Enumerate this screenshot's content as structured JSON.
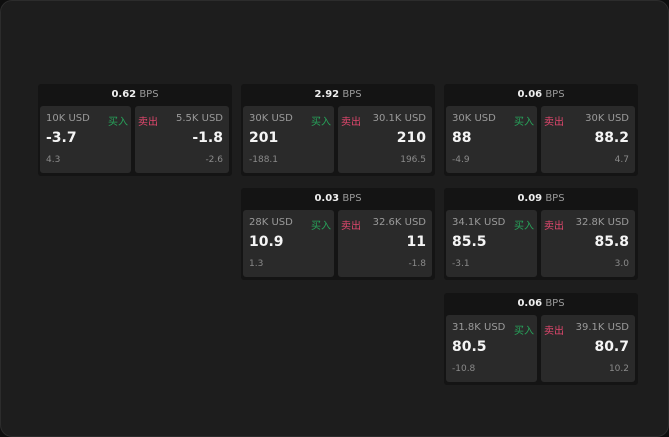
{
  "labels": {
    "bps": "BPS",
    "buy": "买入",
    "sell": "卖出"
  },
  "colors": {
    "buy": "#27a35a",
    "sell": "#e0476d"
  },
  "widgets": [
    {
      "spread": "0.62",
      "bid_qty": "10K USD",
      "bid": "-3.7",
      "bid_chg": "4.3",
      "ask_qty": "5.5K USD",
      "ask": "-1.8",
      "ask_chg": "-2.6"
    },
    {
      "spread": "2.92",
      "bid_qty": "30K USD",
      "bid": "201",
      "bid_chg": "-188.1",
      "ask_qty": "30.1K USD",
      "ask": "210",
      "ask_chg": "196.5"
    },
    {
      "spread": "0.06",
      "bid_qty": "30K USD",
      "bid": "88",
      "bid_chg": "-4.9",
      "ask_qty": "30K USD",
      "ask": "88.2",
      "ask_chg": "4.7"
    },
    {
      "spread": "0.03",
      "bid_qty": "28K USD",
      "bid": "10.9",
      "bid_chg": "1.3",
      "ask_qty": "32.6K USD",
      "ask": "11",
      "ask_chg": "-1.8"
    },
    {
      "spread": "0.09",
      "bid_qty": "34.1K USD",
      "bid": "85.5",
      "bid_chg": "-3.1",
      "ask_qty": "32.8K USD",
      "ask": "85.8",
      "ask_chg": "3.0"
    },
    {
      "spread": "0.06",
      "bid_qty": "31.8K USD",
      "bid": "80.5",
      "bid_chg": "-10.8",
      "ask_qty": "39.1K USD",
      "ask": "80.7",
      "ask_chg": "10.2"
    }
  ]
}
